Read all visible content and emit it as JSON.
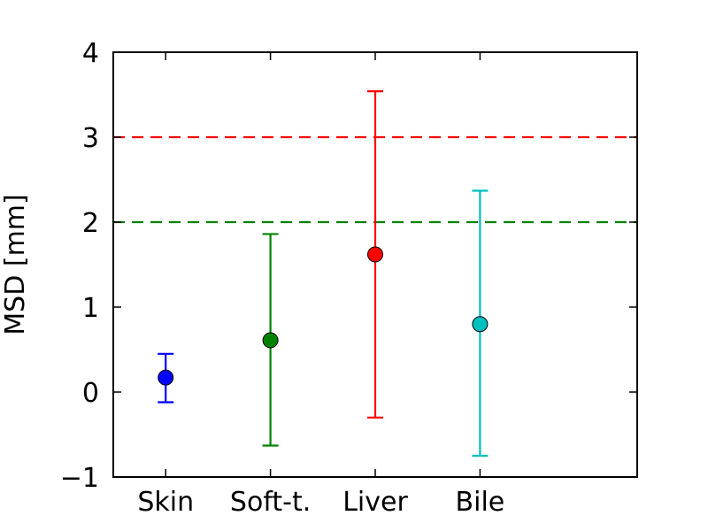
{
  "chart_data": {
    "type": "scatter",
    "ylabel": "MSD [mm]",
    "xlabel": "",
    "ylim": [
      -1,
      4
    ],
    "grid": false,
    "categories": [
      "Skin",
      "Soft-t.",
      "Liver",
      "Bile"
    ],
    "y_ticks": [
      -1,
      0,
      1,
      2,
      3,
      4
    ],
    "y_tick_labels": [
      "−1",
      "0",
      "1",
      "2",
      "3",
      "4"
    ],
    "points": [
      {
        "category": "Skin",
        "value": 0.17,
        "err_low": -0.12,
        "err_high": 0.45,
        "color": "#0000ff"
      },
      {
        "category": "Soft-t.",
        "value": 0.61,
        "err_low": -0.63,
        "err_high": 1.86,
        "color": "#008000"
      },
      {
        "category": "Liver",
        "value": 1.62,
        "err_low": -0.3,
        "err_high": 3.54,
        "color": "#ff0000"
      },
      {
        "category": "Bile",
        "value": 0.8,
        "err_low": -0.75,
        "err_high": 2.37,
        "color": "#00bfbf"
      }
    ],
    "reference_lines": [
      {
        "y": 3,
        "color": "#ff0000",
        "style": "dashed"
      },
      {
        "y": 2,
        "color": "#008000",
        "style": "dashed"
      }
    ]
  }
}
